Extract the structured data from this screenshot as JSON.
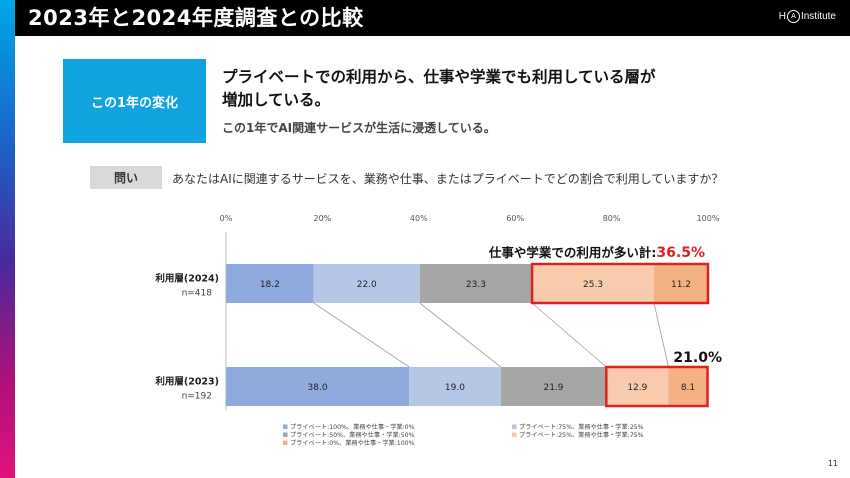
{
  "header": {
    "title": "2023年と2024年度調査との比較",
    "logo_left": "H",
    "logo_ring": "A",
    "logo_right": "Institute"
  },
  "change_box": {
    "label": "この1年の変化"
  },
  "headline": {
    "line1": "プライベートでの利用から、仕事や学業でも利用している層が",
    "line2": "増加している。"
  },
  "subline": "この1年でAI関連サービスが生活に浸透している。",
  "question": {
    "tag": "問い",
    "text": "あなたはAIに関連するサービスを、業務や仕事、またはプライベートでどの割合で利用していますか？"
  },
  "chart_data": {
    "type": "bar",
    "orientation": "horizontal",
    "stacked": true,
    "x_ticks": [
      "0%",
      "20%",
      "40%",
      "60%",
      "80%",
      "100%"
    ],
    "xlim": [
      0,
      100
    ],
    "categories": [
      {
        "label": "利用層(2024)",
        "n": "n=418"
      },
      {
        "label": "利用層(2023)",
        "n": "n=192"
      }
    ],
    "series": [
      {
        "name": "プライベート:100%、業務や仕事・学業:0%",
        "color": "#8faadc",
        "values": [
          18.2,
          38.0
        ]
      },
      {
        "name": "プライベート:75%、業務や仕事・学業:25%",
        "color": "#b4c7e7",
        "values": [
          22.0,
          19.0
        ]
      },
      {
        "name": "プライベート:50%、業務や仕事・学業:50%",
        "color": "#a6a6a6",
        "values": [
          23.3,
          21.9
        ]
      },
      {
        "name": "プライベート:25%、業務や仕事・学業:75%",
        "color": "#f8cbad",
        "values": [
          25.3,
          12.9
        ]
      },
      {
        "name": "プライベート:0%、業務や仕事・学業:100%",
        "color": "#f4b183",
        "values": [
          11.2,
          8.1
        ]
      }
    ],
    "annotations": {
      "total_2024_label": "仕事や学業での利用が多い計:",
      "total_2024_value": "36.5%",
      "total_2023_value": "21.0%",
      "highlight_color": "#e02020"
    },
    "legend_position": "bottom"
  },
  "page_number": "11"
}
